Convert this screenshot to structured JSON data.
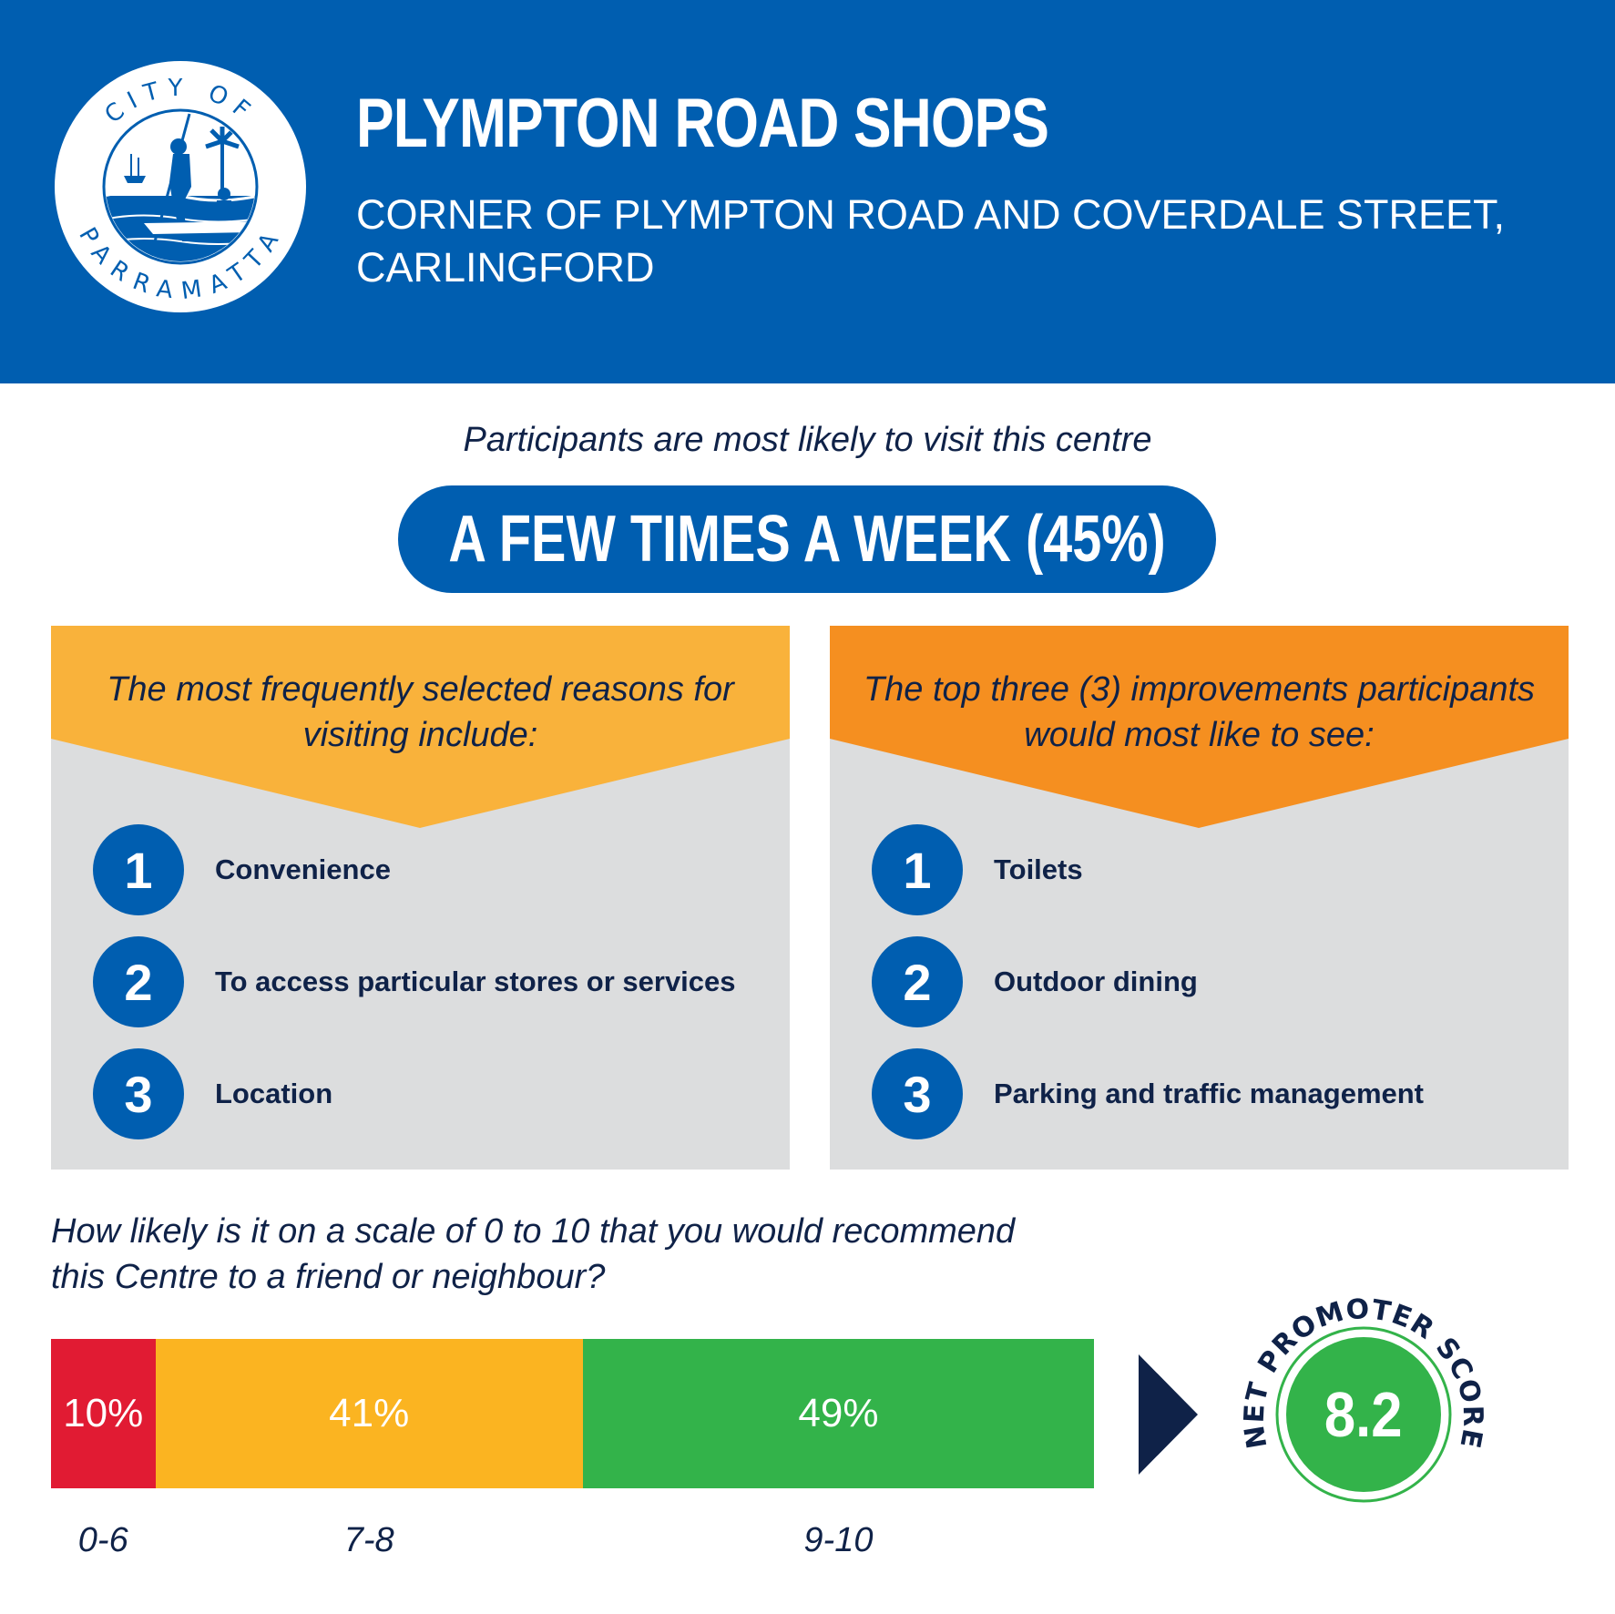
{
  "header": {
    "logo_text_top": "CITY OF",
    "logo_text_bottom": "PARRAMATTA",
    "title": "PLYMPTON ROAD SHOPS",
    "subtitle_line1": "CORNER OF PLYMPTON ROAD AND COVERDALE STREET,",
    "subtitle_line2": "CARLINGFORD"
  },
  "visit": {
    "intro": "Participants are most likely to visit this centre",
    "frequency": "A FEW TIMES A WEEK (45%)"
  },
  "reasons": {
    "heading_line1": "The most frequently selected reasons for",
    "heading_line2": "visiting include:",
    "items": [
      {
        "rank": "1",
        "label": "Convenience"
      },
      {
        "rank": "2",
        "label": "To access particular stores or services"
      },
      {
        "rank": "3",
        "label": "Location"
      }
    ]
  },
  "improvements": {
    "heading_line1": "The top three (3) improvements participants",
    "heading_line2": "would most like to see:",
    "items": [
      {
        "rank": "1",
        "label": "Toilets"
      },
      {
        "rank": "2",
        "label": "Outdoor dining"
      },
      {
        "rank": "3",
        "label": "Parking and traffic management"
      }
    ]
  },
  "recommend": {
    "question_line1": "How likely is it on a scale of 0 to 10 that you would recommend",
    "question_line2": "this Centre to a friend or neighbour?",
    "segments": [
      {
        "range": "0-6",
        "value": 10,
        "label": "10%",
        "color": "#e11b33"
      },
      {
        "range": "7-8",
        "value": 41,
        "label": "41%",
        "color": "#fbb421"
      },
      {
        "range": "9-10",
        "value": 49,
        "label": "49%",
        "color": "#33b34a"
      }
    ],
    "nps_label": "NET PROMOTER SCORE",
    "nps_value": "8.2",
    "nps_color": "#33b34a"
  },
  "colors": {
    "brand_blue": "#005eb0",
    "navy": "#0f2248",
    "reasons_banner": "#f9b23b",
    "improvements_banner": "#f58f20",
    "panel_grey": "#dcddde"
  }
}
